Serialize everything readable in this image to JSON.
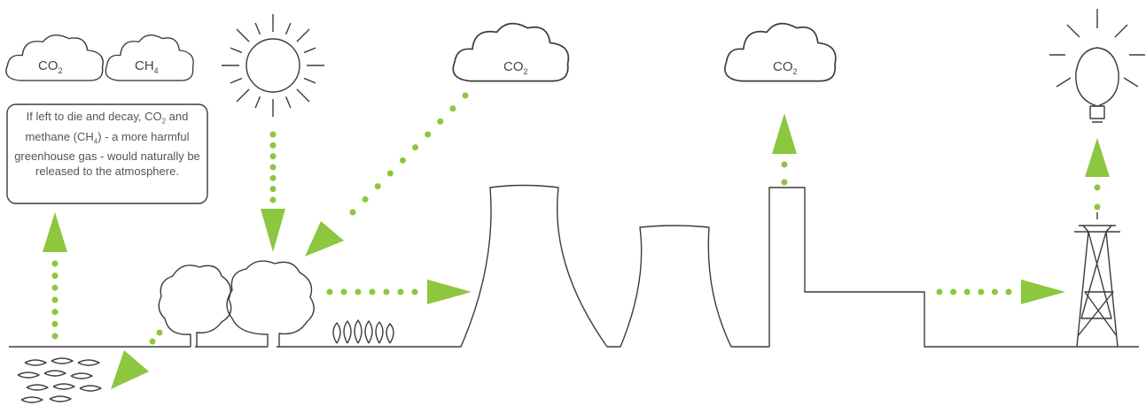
{
  "clouds": [
    {
      "label": "CO",
      "sub": "2"
    },
    {
      "label": "CH",
      "sub": "4"
    },
    {
      "label": "CO",
      "sub": "2"
    },
    {
      "label": "CO",
      "sub": "2"
    }
  ],
  "note": {
    "parts": [
      "If left to die and decay, CO",
      "2",
      " and methane (CH",
      "4",
      ") - a more harmful greenhouse gas - would naturally be released to the atmosphere."
    ]
  }
}
